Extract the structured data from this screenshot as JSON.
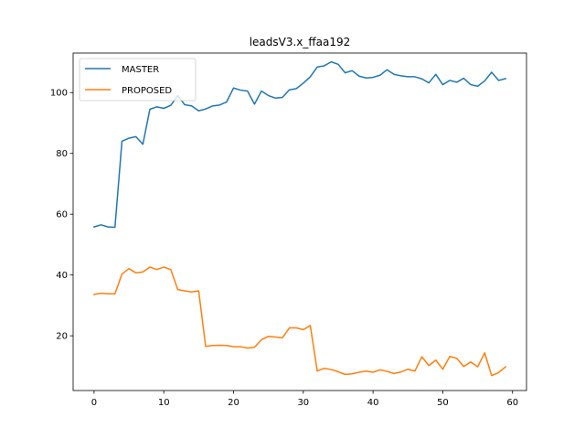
{
  "chart_data": {
    "type": "line",
    "title": "leadsV3.x_ffaa192",
    "xlabel": "",
    "ylabel": "",
    "xlim": [
      -3,
      62
    ],
    "ylim": [
      2,
      113
    ],
    "xticks": [
      0,
      10,
      20,
      30,
      40,
      50,
      60
    ],
    "yticks": [
      20,
      40,
      60,
      80,
      100
    ],
    "grid": false,
    "legend_position": "top-left",
    "x": [
      0,
      1,
      2,
      3,
      4,
      5,
      6,
      7,
      8,
      9,
      10,
      11,
      12,
      13,
      14,
      15,
      16,
      17,
      18,
      19,
      20,
      21,
      22,
      23,
      24,
      25,
      26,
      27,
      28,
      29,
      30,
      31,
      32,
      33,
      34,
      35,
      36,
      37,
      38,
      39,
      40,
      41,
      42,
      43,
      44,
      45,
      46,
      47,
      48,
      49,
      50,
      51,
      52,
      53,
      54,
      55,
      56,
      57,
      58,
      59
    ],
    "series": [
      {
        "name": "MASTER",
        "color": "#1f77b4",
        "values": [
          55.8,
          56.5,
          55.8,
          55.7,
          84,
          85,
          85.5,
          83,
          94.5,
          95.3,
          94.8,
          95.8,
          99,
          96,
          95.6,
          94,
          94.6,
          95.6,
          95.9,
          96.9,
          101.5,
          100.8,
          100.5,
          96.2,
          100.5,
          99,
          98.2,
          98.4,
          100.9,
          101.3,
          103.1,
          105.2,
          108.4,
          108.8,
          110.1,
          109.3,
          106.5,
          107.2,
          105.4,
          104.8,
          105,
          105.7,
          107.5,
          106,
          105.5,
          105.2,
          105.2,
          104.5,
          103.2,
          106,
          102.6,
          104,
          103.4,
          104.7,
          102.6,
          102.1,
          103.8,
          106.7,
          104,
          104.6
        ]
      },
      {
        "name": "PROPOSED",
        "color": "#ff7f0e",
        "values": [
          33.6,
          34,
          33.8,
          33.8,
          40.3,
          42.1,
          40.7,
          41,
          42.6,
          41.8,
          42.6,
          41.8,
          35.2,
          34.8,
          34.4,
          34.8,
          16.5,
          16.8,
          16.9,
          16.8,
          16.4,
          16.4,
          16,
          16.2,
          18.7,
          19.8,
          19.6,
          19.3,
          22.6,
          22.6,
          22,
          23.4,
          8.4,
          9.3,
          8.9,
          8.2,
          7.3,
          7.5,
          8,
          8.4,
          8,
          8.8,
          8.3,
          7.6,
          8.1,
          9,
          8.4,
          13.1,
          10.2,
          12,
          9,
          13.2,
          12.6,
          9.9,
          11.4,
          9.8,
          14.4,
          6.9,
          7.9,
          9.8
        ]
      }
    ]
  }
}
